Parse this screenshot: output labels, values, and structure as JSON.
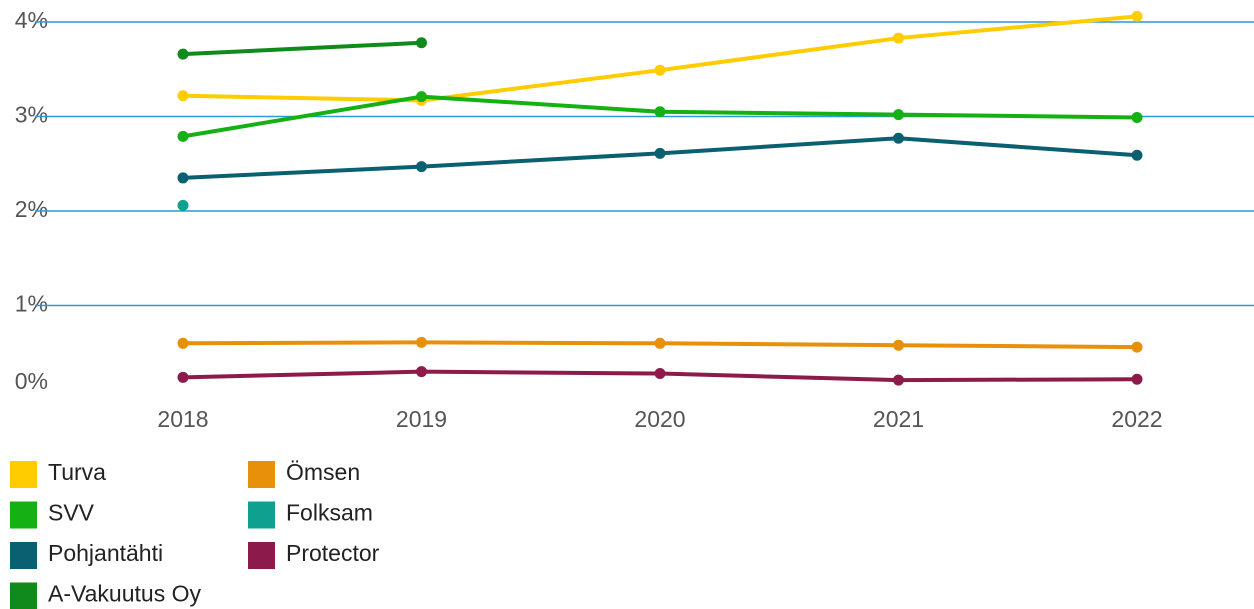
{
  "chart_data": {
    "type": "line",
    "categories": [
      "2018",
      "2019",
      "2020",
      "2021",
      "2022"
    ],
    "series": [
      {
        "name": "Turva",
        "color": "#ffcc00",
        "values": [
          3.22,
          3.17,
          3.49,
          3.83,
          4.06
        ]
      },
      {
        "name": "Ömsen",
        "color": "#e8900a",
        "values": [
          0.6,
          0.61,
          0.6,
          0.58,
          0.56
        ]
      },
      {
        "name": "SVV",
        "color": "#14b014",
        "values": [
          2.79,
          3.21,
          3.05,
          3.02,
          2.99
        ]
      },
      {
        "name": "Folksam",
        "color": "#10a090",
        "values": [
          2.06,
          null,
          null,
          null,
          null
        ]
      },
      {
        "name": "Pohjantähti",
        "color": "#0a6070",
        "values": [
          2.35,
          2.47,
          2.61,
          2.77,
          2.59
        ]
      },
      {
        "name": "Protector",
        "color": "#8c1a4a",
        "values": [
          0.24,
          0.3,
          0.28,
          0.21,
          0.22
        ]
      },
      {
        "name": "A-Vakuutus Oy",
        "color": "#108a1a",
        "values": [
          3.66,
          3.78,
          null,
          null,
          null
        ]
      }
    ],
    "ylim": [
      0,
      4
    ],
    "yticks": [
      {
        "value": 0,
        "label": "0%"
      },
      {
        "value": 1,
        "label": "1%"
      },
      {
        "value": 2,
        "label": "2%"
      },
      {
        "value": 3,
        "label": "3%"
      },
      {
        "value": 4,
        "label": "4%"
      }
    ],
    "grid": true
  }
}
